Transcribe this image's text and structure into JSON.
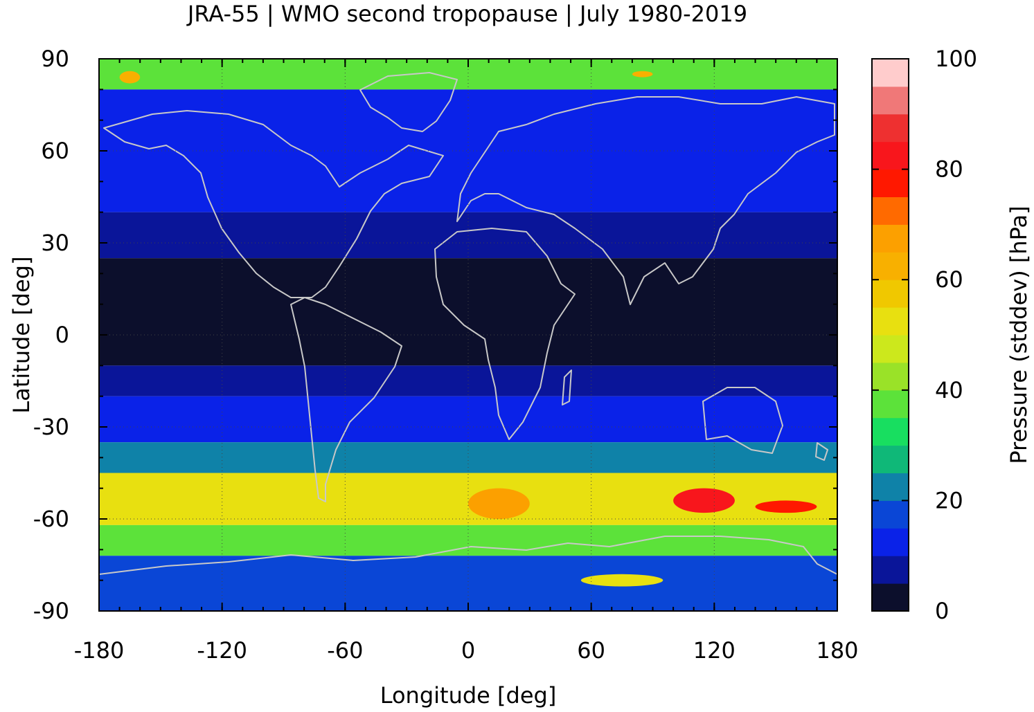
{
  "chart_data": {
    "type": "heatmap",
    "title": "JRA-55 | WMO second tropopause | July 1980-2019",
    "xlabel": "Longitude [deg]",
    "ylabel": "Latitude [deg]",
    "xlim": [
      -180,
      180
    ],
    "ylim": [
      -90,
      90
    ],
    "x_ticks": [
      "-180",
      "-120",
      "-60",
      "0",
      "60",
      "120",
      "180"
    ],
    "y_ticks": [
      "90",
      "60",
      "30",
      "0",
      "-30",
      "-60",
      "-90"
    ],
    "colorbar": {
      "label": "Pressure (stddev) [hPa]",
      "range": [
        0,
        100
      ],
      "ticks": [
        "0",
        "20",
        "40",
        "60",
        "80",
        "100"
      ],
      "colors": [
        "#0c0f2c",
        "#0a1599",
        "#0a22e8",
        "#0a46d6",
        "#0f82a8",
        "#0fb878",
        "#18de60",
        "#5ce23a",
        "#9ae228",
        "#cce81c",
        "#e8e010",
        "#f0c800",
        "#f8b000",
        "#fca000",
        "#ff6a00",
        "#ff1800",
        "#f8161c",
        "#ee3030",
        "#f07878",
        "#ffcccc"
      ]
    },
    "bands": [
      {
        "lat": [
          80,
          90
        ],
        "value": 35
      },
      {
        "lat": [
          60,
          80
        ],
        "value": 14
      },
      {
        "lat": [
          40,
          60
        ],
        "value": 12
      },
      {
        "lat": [
          25,
          40
        ],
        "value": 7
      },
      {
        "lat": [
          -10,
          25
        ],
        "value": 2
      },
      {
        "lat": [
          -20,
          -10
        ],
        "value": 6
      },
      {
        "lat": [
          -35,
          -20
        ],
        "value": 12
      },
      {
        "lat": [
          -45,
          -35
        ],
        "value": 22
      },
      {
        "lat": [
          -62,
          -45
        ],
        "value": 52
      },
      {
        "lat": [
          -72,
          -62
        ],
        "value": 35
      },
      {
        "lat": [
          -90,
          -72
        ],
        "value": 15
      }
    ],
    "features": [
      {
        "lon": [
          0,
          30
        ],
        "lat": [
          -60,
          -50
        ],
        "value": 68
      },
      {
        "lon": [
          100,
          130
        ],
        "lat": [
          -58,
          -50
        ],
        "value": 82
      },
      {
        "lon": [
          140,
          170
        ],
        "lat": [
          -58,
          -54
        ],
        "value": 75
      },
      {
        "lon": [
          55,
          95
        ],
        "lat": [
          -82,
          -78
        ],
        "value": 52
      },
      {
        "lon": [
          -170,
          -160
        ],
        "lat": [
          82,
          86
        ],
        "value": 62
      },
      {
        "lon": [
          80,
          90
        ],
        "lat": [
          84,
          86
        ],
        "value": 60
      }
    ]
  }
}
